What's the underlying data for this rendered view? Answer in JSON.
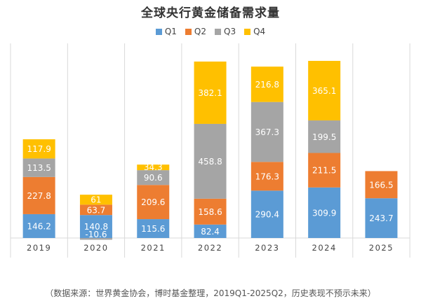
{
  "chart_data": {
    "type": "bar",
    "stacked": true,
    "title": "全球央行黄金储备需求量",
    "categories": [
      "2019",
      "2020",
      "2021",
      "2022",
      "2023",
      "2024",
      "2025"
    ],
    "series": [
      {
        "name": "Q1",
        "color": "#5b9bd5",
        "values": [
          146.2,
          140.8,
          115.6,
          82.4,
          290.4,
          309.9,
          243.7
        ]
      },
      {
        "name": "Q2",
        "color": "#ed7d31",
        "values": [
          227.8,
          63.7,
          209.6,
          158.6,
          176.3,
          211.5,
          166.5
        ]
      },
      {
        "name": "Q3",
        "color": "#a5a5a5",
        "values": [
          113.5,
          -10.6,
          90.6,
          458.8,
          367.3,
          199.5,
          null
        ]
      },
      {
        "name": "Q4",
        "color": "#ffc000",
        "values": [
          117.9,
          61,
          34.3,
          382.1,
          216.8,
          365.1,
          null
        ]
      }
    ],
    "legend": "top",
    "grid": "vertical category separators",
    "footnote": "（数据来源：世界黄金协会，博时基金整理，2019Q1-2025Q2，历史表现不预示未来）"
  }
}
